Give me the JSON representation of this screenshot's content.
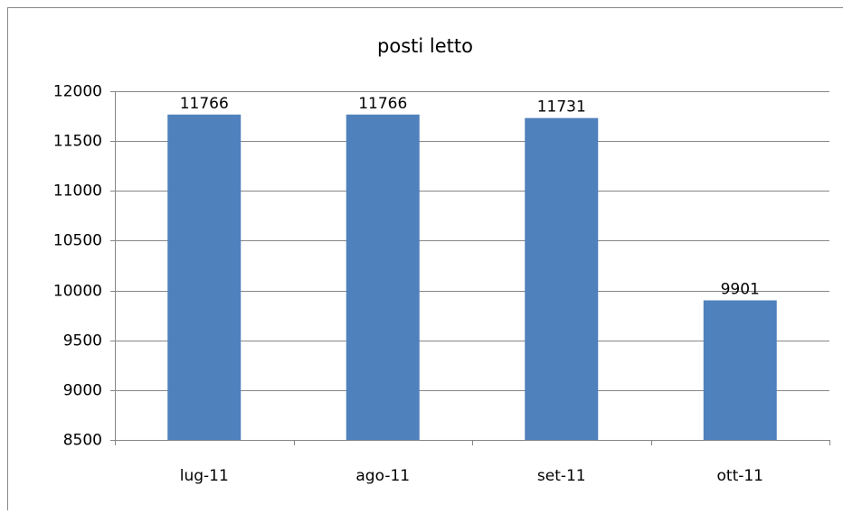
{
  "chart_data": {
    "type": "bar",
    "title": "posti letto",
    "categories": [
      "lug-11",
      "ago-11",
      "set-11",
      "ott-11"
    ],
    "values": [
      11766,
      11766,
      11731,
      9901
    ],
    "color": "#4f81bd",
    "ylim": [
      8500,
      12000
    ],
    "yticks": [
      8500,
      9000,
      9500,
      10000,
      10500,
      11000,
      11500,
      12000
    ],
    "grid": true
  }
}
